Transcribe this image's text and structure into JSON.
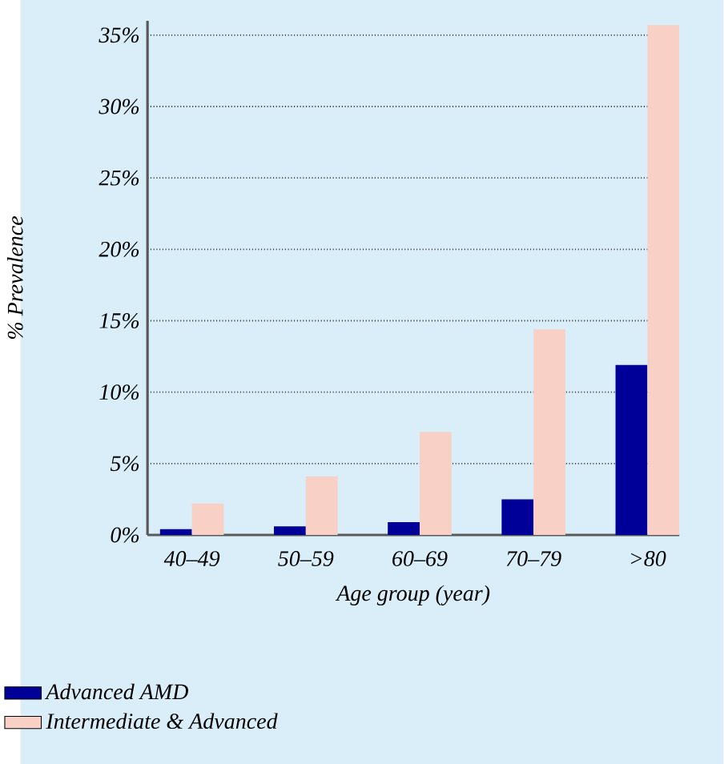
{
  "chart_data": {
    "type": "bar",
    "xlabel": "Age group (year)",
    "ylabel": "% Prevalence",
    "categories": [
      "40–49",
      "50–59",
      "60–69",
      "70–79",
      ">80"
    ],
    "series": [
      {
        "name": "Advanced AMD",
        "color": "#000099",
        "values": [
          0.4,
          0.6,
          0.9,
          2.5,
          11.9
        ]
      },
      {
        "name": "Intermediate & Advanced",
        "color": "#f8d0c5",
        "values": [
          2.2,
          4.1,
          7.2,
          14.4,
          35.7
        ]
      }
    ],
    "ylim": [
      0,
      36
    ],
    "yticks": [
      {
        "value": 0,
        "label": "0%"
      },
      {
        "value": 5,
        "label": "5%"
      },
      {
        "value": 10,
        "label": "10%"
      },
      {
        "value": 15,
        "label": "15%"
      },
      {
        "value": 20,
        "label": "20%"
      },
      {
        "value": 25,
        "label": "25%"
      },
      {
        "value": 30,
        "label": "30%"
      },
      {
        "value": 35,
        "label": "35%"
      }
    ],
    "grid": "y",
    "legend": "bottom"
  }
}
